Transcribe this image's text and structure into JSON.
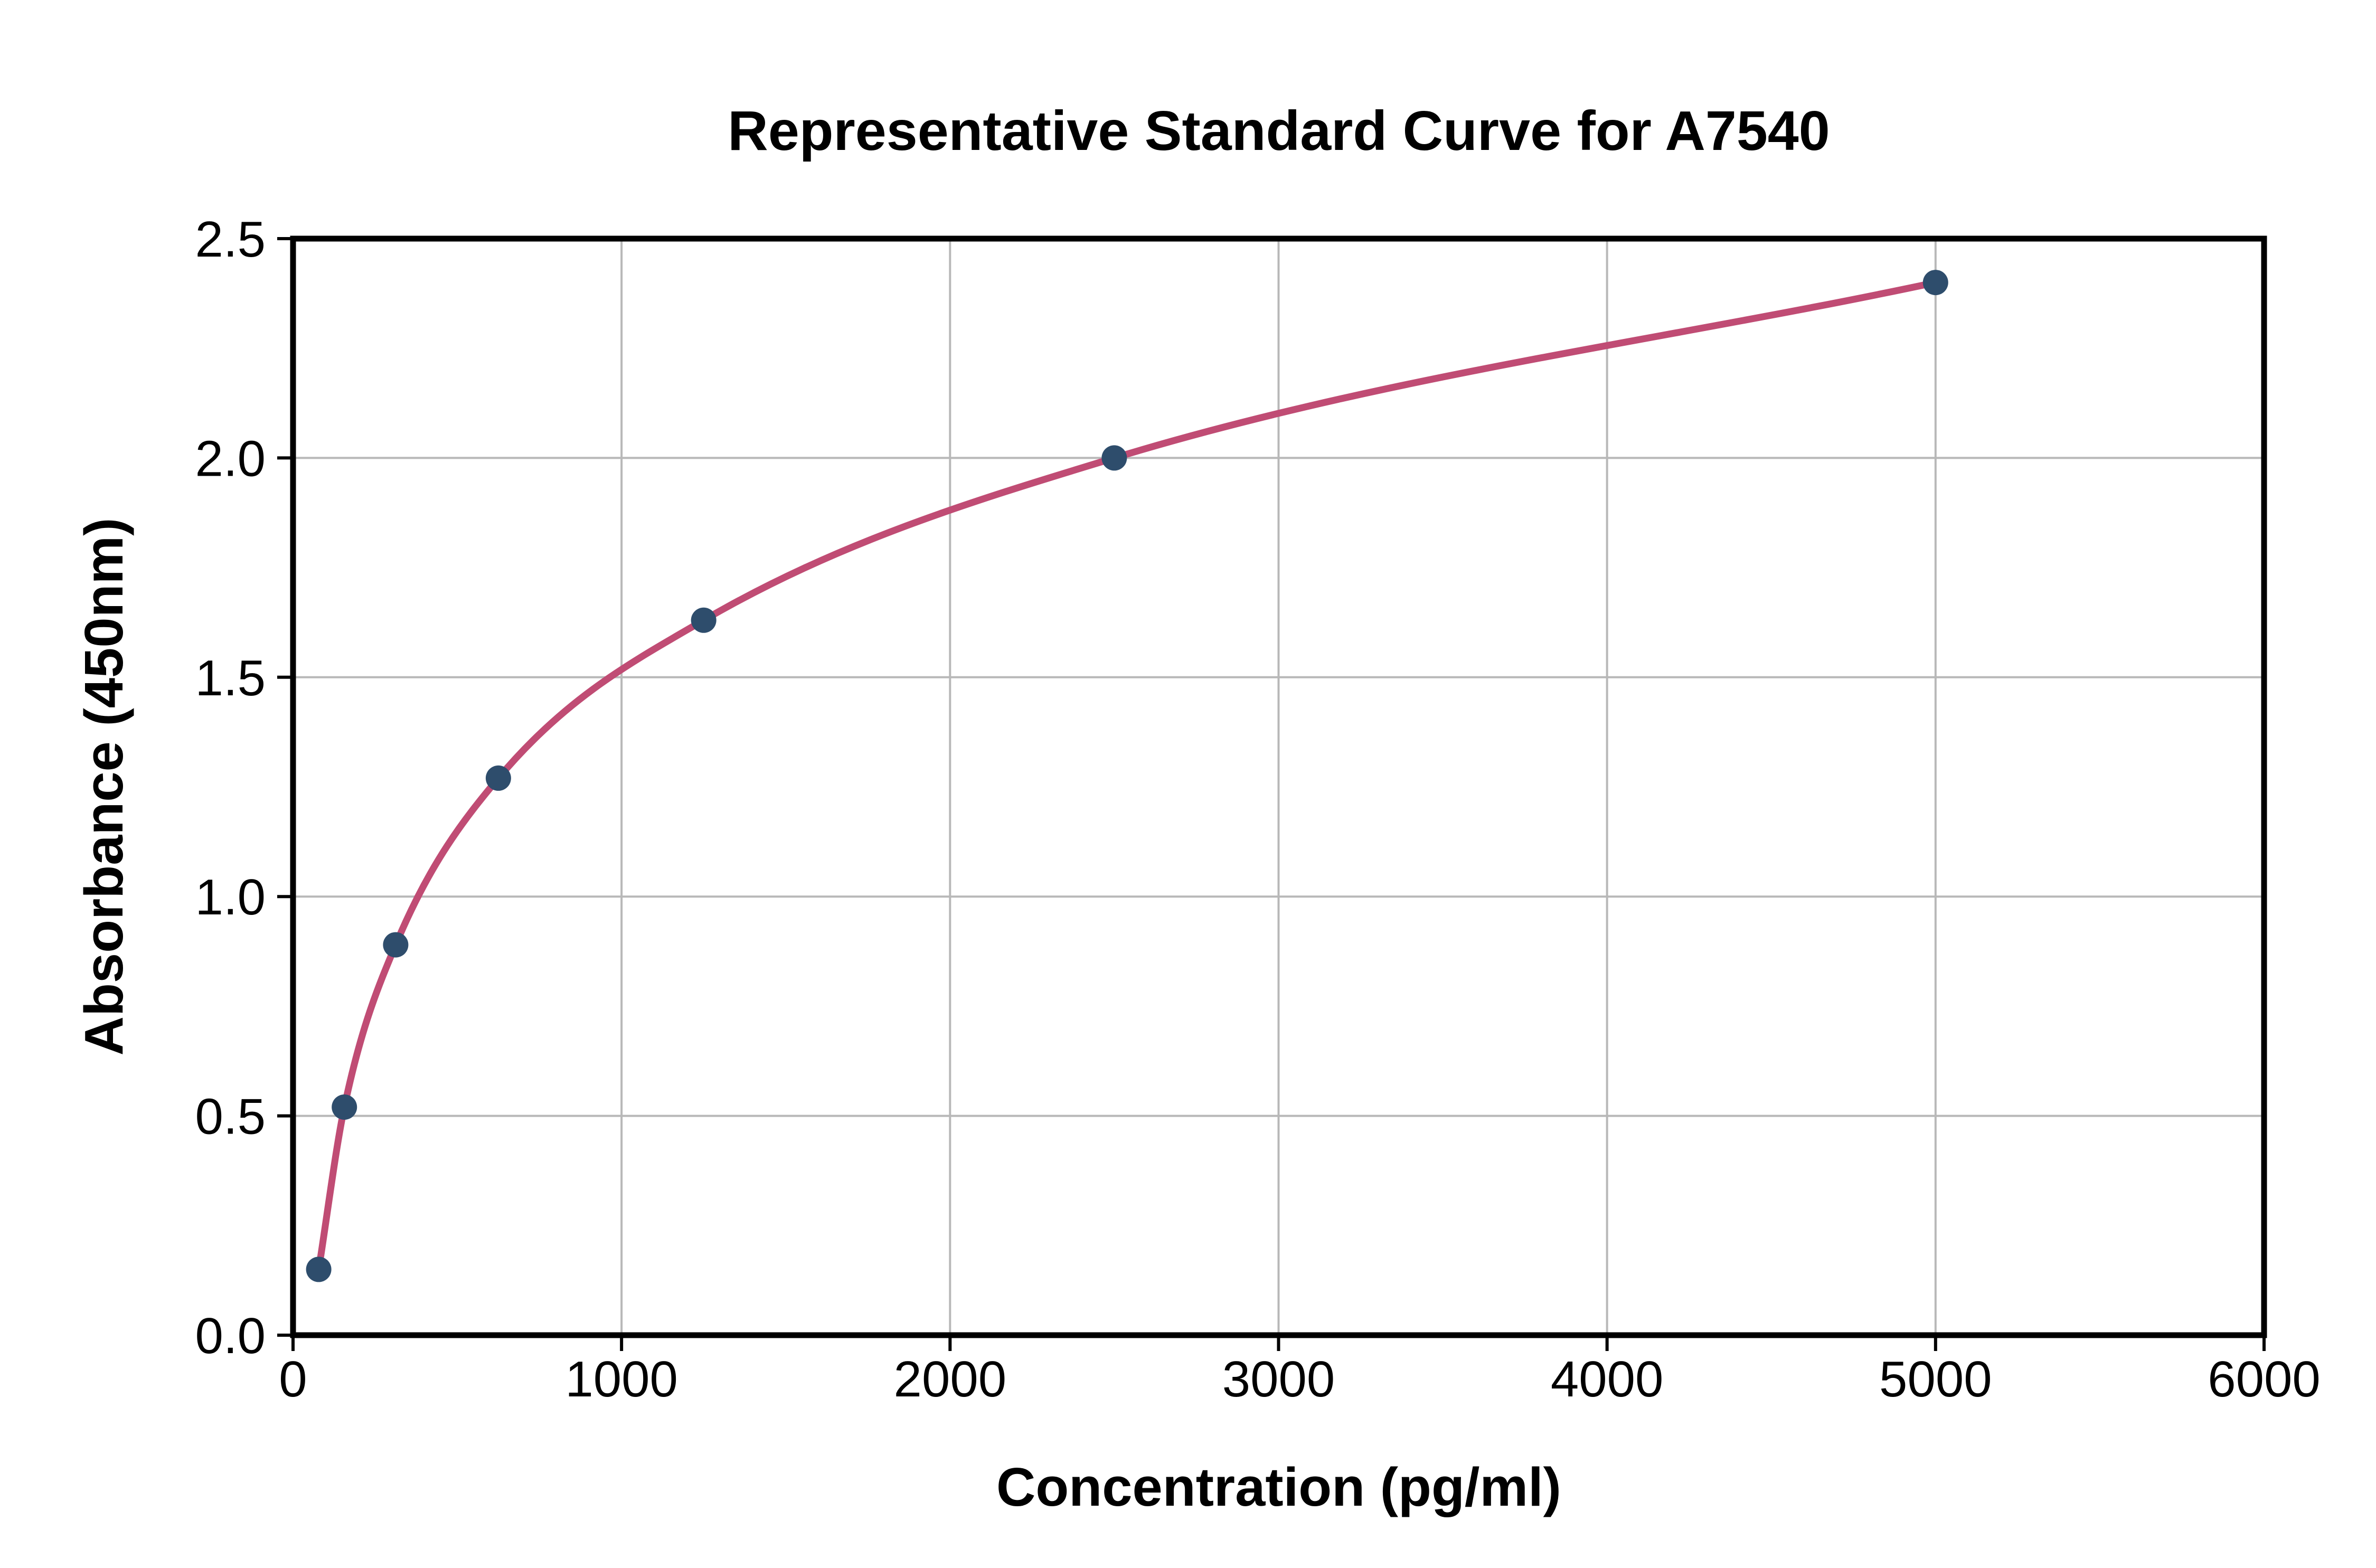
{
  "title": "Representative Standard Curve for A7540",
  "chart_data": {
    "type": "scatter",
    "title": "Representative Standard Curve for A7540",
    "xlabel": "Concentration (pg/ml)",
    "ylabel": "Absorbance (450nm)",
    "xlim": [
      0,
      6000
    ],
    "ylim": [
      0,
      2.5
    ],
    "grid": true,
    "legend_position": "none",
    "x_ticks": [
      0,
      1000,
      2000,
      3000,
      4000,
      5000,
      6000
    ],
    "x_tick_labels": [
      "0",
      "1000",
      "2000",
      "3000",
      "4000",
      "5000",
      "6000"
    ],
    "y_ticks": [
      0.0,
      0.5,
      1.0,
      1.5,
      2.0,
      2.5
    ],
    "y_tick_labels": [
      "0.0",
      "0.5",
      "1.0",
      "1.5",
      "2.0",
      "2.5"
    ],
    "series": [
      {
        "name": "standard-points",
        "x": [
          78.1,
          156.3,
          312.5,
          625,
          1250,
          2500,
          5000
        ],
        "y": [
          0.15,
          0.52,
          0.89,
          1.27,
          1.63,
          2.0,
          2.4
        ]
      }
    ],
    "fit_curve": {
      "name": "4pl-fit",
      "x": [
        78.1,
        156.3,
        312.5,
        625,
        1250,
        2500,
        5000
      ],
      "y": [
        0.15,
        0.52,
        0.89,
        1.27,
        1.63,
        2.0,
        2.4
      ]
    }
  },
  "colors": {
    "curve": "#C04C74",
    "marker": "#2E4D6C",
    "grid": "#B8B8B8",
    "spine": "#000000",
    "background": "#FFFFFF"
  }
}
